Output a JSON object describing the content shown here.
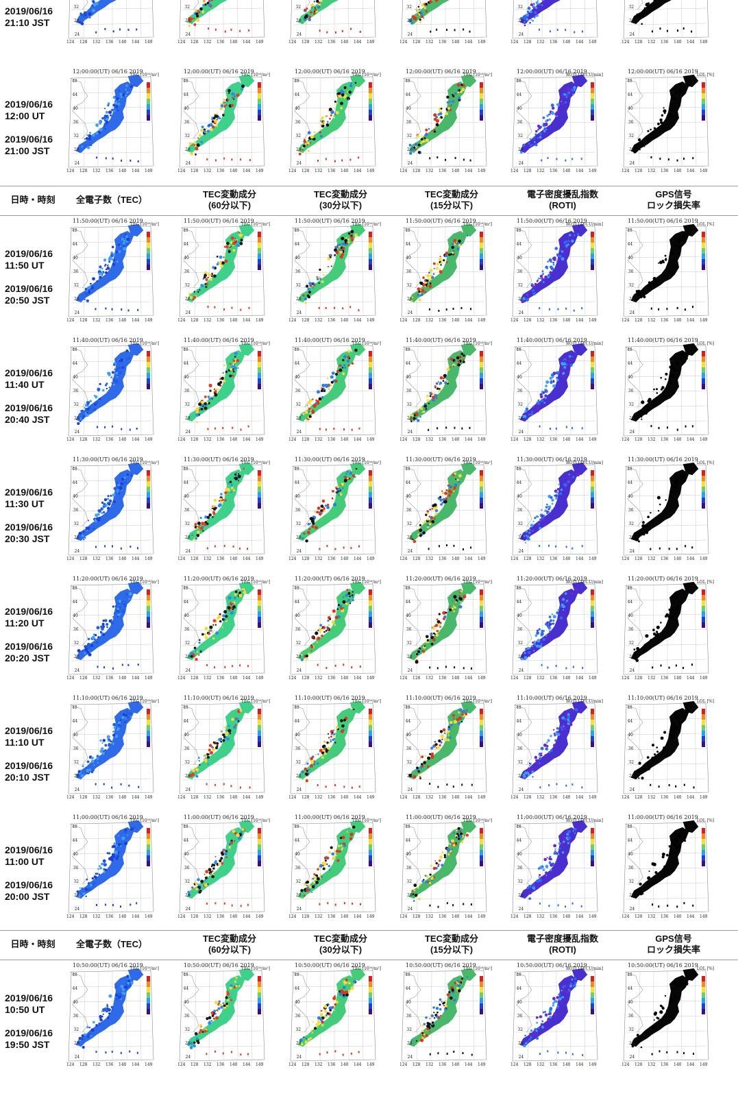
{
  "header": {
    "datetime": "日時・時刻",
    "tec": "全電子数（TEC）",
    "tec60_line1": "TEC変動成分",
    "tec60_line2": "(60分以下)",
    "tec30_line1": "TEC変動成分",
    "tec30_line2": "(30分以下)",
    "tec15_line1": "TEC変動成分",
    "tec15_line2": "(15分以下)",
    "roti_line1": "電子密度擾乱指数",
    "roti_line2": "(ROTI)",
    "lol_line1": "GPS信号",
    "lol_line2": "ロック損失率"
  },
  "axis": {
    "lat_labels": [
      "48",
      "44",
      "40",
      "36",
      "32",
      "28",
      "24"
    ],
    "lon_labels": [
      "124",
      "128",
      "132",
      "136",
      "140",
      "144",
      "149"
    ]
  },
  "colorbar_units": {
    "tec": "TEC [10¹⁶/m²]",
    "tec_var": "TEC [10¹⁶/m²]",
    "roti": "ROTI [TECU/min]",
    "lol": "LOL [%]"
  },
  "rows": [
    {
      "map_title": "",
      "ut_date": "",
      "ut_time": "",
      "jst_date": "2019/06/16",
      "jst_time": "21:10 JST"
    },
    {
      "map_title": "12:00:00(UT) 06/16 2019",
      "ut_date": "2019/06/16",
      "ut_time": "12:00 UT",
      "jst_date": "2019/06/16",
      "jst_time": "21:00 JST"
    },
    {
      "map_title": "11:50:00(UT) 06/16 2019",
      "ut_date": "2019/06/16",
      "ut_time": "11:50 UT",
      "jst_date": "2019/06/16",
      "jst_time": "20:50 JST"
    },
    {
      "map_title": "11:40:00(UT) 06/16 2019",
      "ut_date": "2019/06/16",
      "ut_time": "11:40 UT",
      "jst_date": "2019/06/16",
      "jst_time": "20:40 JST"
    },
    {
      "map_title": "11:30:00(UT) 06/16 2019",
      "ut_date": "2019/06/16",
      "ut_time": "11:30 UT",
      "jst_date": "2019/06/16",
      "jst_time": "20:30 JST"
    },
    {
      "map_title": "11:20:00(UT) 06/16 2019",
      "ut_date": "2019/06/16",
      "ut_time": "11:20 UT",
      "jst_date": "2019/06/16",
      "jst_time": "20:20 JST"
    },
    {
      "map_title": "11:10:00(UT) 06/16 2019",
      "ut_date": "2019/06/16",
      "ut_time": "11:10 UT",
      "jst_date": "2019/06/16",
      "jst_time": "20:10 JST"
    },
    {
      "map_title": "11:00:00(UT) 06/16 2019",
      "ut_date": "2019/06/16",
      "ut_time": "11:00 UT",
      "jst_date": "2019/06/16",
      "jst_time": "20:00 JST"
    },
    {
      "map_title": "10:50:00(UT) 06/16 2019",
      "ut_date": "2019/06/16",
      "ut_time": "10:50 UT",
      "jst_date": "2019/06/16",
      "jst_time": "19:50 JST"
    }
  ],
  "columns": [
    {
      "key": "tec",
      "land": "#2f6be8",
      "dots": [
        "#1e3fd6",
        "#3fa0f5",
        "#1f5fe0"
      ]
    },
    {
      "key": "tec60",
      "land": "#3fd08a",
      "dots": [
        "#e83a1c",
        "#f5d93a",
        "#2a8cf0",
        "#1a1a1a"
      ]
    },
    {
      "key": "tec30",
      "land": "#45cc7a",
      "dots": [
        "#e0351a",
        "#111111",
        "#f2dd3c",
        "#2f7ee8"
      ]
    },
    {
      "key": "tec15",
      "land": "#4ab86a",
      "dots": [
        "#111111",
        "#e0351a",
        "#f2dd3c",
        "#2f7ee8"
      ]
    },
    {
      "key": "roti",
      "land": "#4a2fd0",
      "dots": [
        "#2b6cf0",
        "#6a28c8",
        "#3aa0ff"
      ]
    },
    {
      "key": "lol",
      "land": "#060606",
      "dots": [
        "#000000"
      ]
    }
  ]
}
